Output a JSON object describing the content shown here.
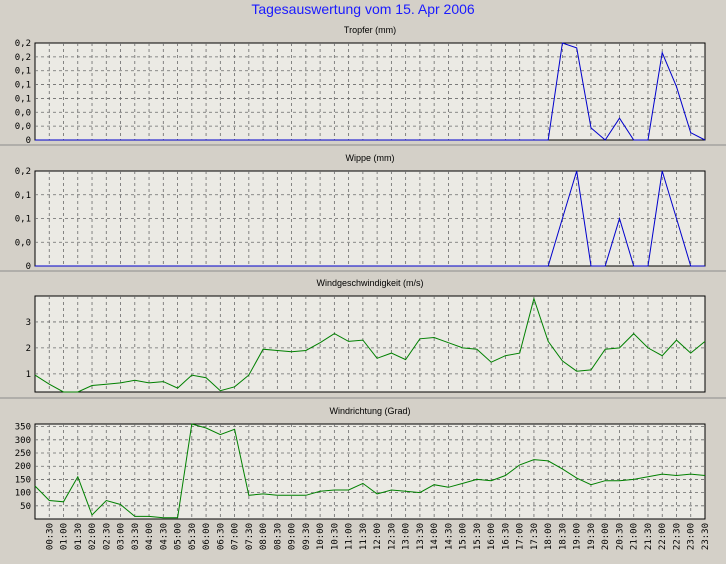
{
  "window": {
    "title": "Tagesauswertung vom 15. Apr 2006"
  },
  "chart_data": [
    {
      "type": "line",
      "title": "Tropfer (mm)",
      "color": "#0000cc",
      "x": [
        "00:00",
        "00:30",
        "01:00",
        "01:30",
        "02:00",
        "02:30",
        "03:00",
        "03:30",
        "04:00",
        "04:30",
        "05:00",
        "05:30",
        "06:00",
        "06:30",
        "07:00",
        "07:30",
        "08:00",
        "08:30",
        "09:00",
        "09:30",
        "10:00",
        "10:30",
        "11:00",
        "11:30",
        "12:00",
        "12:30",
        "13:00",
        "13:30",
        "14:00",
        "14:30",
        "15:00",
        "15:30",
        "16:00",
        "16:30",
        "17:00",
        "17:30",
        "18:00",
        "18:30",
        "19:00",
        "19:30",
        "20:00",
        "20:30",
        "21:00",
        "21:30",
        "22:00",
        "22:30",
        "23:00",
        "23:30"
      ],
      "values": [
        0,
        0,
        0,
        0,
        0,
        0,
        0,
        0,
        0,
        0,
        0,
        0,
        0,
        0,
        0,
        0,
        0,
        0,
        0,
        0,
        0,
        0,
        0,
        0,
        0,
        0,
        0,
        0,
        0,
        0,
        0,
        0,
        0,
        0,
        0,
        0,
        0,
        0.2,
        0.19,
        0.025,
        0,
        0.045,
        0,
        0,
        0.18,
        0.11,
        0.015,
        0
      ],
      "ylim": [
        0,
        0.2
      ],
      "yticks": [
        "0,2",
        "0,2",
        "0,1",
        "0,1",
        "0,1",
        "0,0",
        "0,0",
        "0"
      ]
    },
    {
      "type": "line",
      "title": "Wippe (mm)",
      "color": "#0000cc",
      "x": [
        "00:00",
        "00:30",
        "01:00",
        "01:30",
        "02:00",
        "02:30",
        "03:00",
        "03:30",
        "04:00",
        "04:30",
        "05:00",
        "05:30",
        "06:00",
        "06:30",
        "07:00",
        "07:30",
        "08:00",
        "08:30",
        "09:00",
        "09:30",
        "10:00",
        "10:30",
        "11:00",
        "11:30",
        "12:00",
        "12:30",
        "13:00",
        "13:30",
        "14:00",
        "14:30",
        "15:00",
        "15:30",
        "16:00",
        "16:30",
        "17:00",
        "17:30",
        "18:00",
        "18:30",
        "19:00",
        "19:30",
        "20:00",
        "20:30",
        "21:00",
        "21:30",
        "22:00",
        "22:30",
        "23:00",
        "23:30"
      ],
      "values": [
        0,
        0,
        0,
        0,
        0,
        0,
        0,
        0,
        0,
        0,
        0,
        0,
        0,
        0,
        0,
        0,
        0,
        0,
        0,
        0,
        0,
        0,
        0,
        0,
        0,
        0,
        0,
        0,
        0,
        0,
        0,
        0,
        0,
        0,
        0,
        0,
        0,
        0.14,
        0.28,
        0,
        0,
        0.14,
        0,
        0,
        0.28,
        0.14,
        0,
        0
      ],
      "ylim": [
        0,
        0.28
      ],
      "yticks": [
        "0,2",
        "0,1",
        "0,1",
        "0,0",
        "0"
      ]
    },
    {
      "type": "line",
      "title": "Windgeschwindigkeit (m/s)",
      "color": "#008000",
      "x": [
        "00:00",
        "00:30",
        "01:00",
        "01:30",
        "02:00",
        "02:30",
        "03:00",
        "03:30",
        "04:00",
        "04:30",
        "05:00",
        "05:30",
        "06:00",
        "06:30",
        "07:00",
        "07:30",
        "08:00",
        "08:30",
        "09:00",
        "09:30",
        "10:00",
        "10:30",
        "11:00",
        "11:30",
        "12:00",
        "12:30",
        "13:00",
        "13:30",
        "14:00",
        "14:30",
        "15:00",
        "15:30",
        "16:00",
        "16:30",
        "17:00",
        "17:30",
        "18:00",
        "18:30",
        "19:00",
        "19:30",
        "20:00",
        "20:30",
        "21:00",
        "21:30",
        "22:00",
        "22:30",
        "23:00",
        "23:30"
      ],
      "values": [
        0.95,
        0.6,
        0.3,
        0.3,
        0.55,
        0.6,
        0.65,
        0.75,
        0.65,
        0.7,
        0.45,
        0.95,
        0.85,
        0.35,
        0.5,
        0.95,
        1.95,
        1.9,
        1.85,
        1.9,
        2.2,
        2.55,
        2.25,
        2.3,
        1.6,
        1.8,
        1.55,
        2.35,
        2.4,
        2.2,
        2.0,
        1.95,
        1.45,
        1.7,
        1.8,
        3.9,
        2.25,
        1.5,
        1.1,
        1.15,
        1.95,
        2.0,
        2.55,
        2.0,
        1.7,
        2.3,
        1.8,
        2.25
      ],
      "ylim": [
        0.3,
        4.0
      ],
      "yticks": [
        "3",
        "2",
        "1"
      ]
    },
    {
      "type": "line",
      "title": "Windrichtung (Grad)",
      "color": "#008000",
      "x": [
        "00:00",
        "00:30",
        "01:00",
        "01:30",
        "02:00",
        "02:30",
        "03:00",
        "03:30",
        "04:00",
        "04:30",
        "05:00",
        "05:30",
        "06:00",
        "06:30",
        "07:00",
        "07:30",
        "08:00",
        "08:30",
        "09:00",
        "09:30",
        "10:00",
        "10:30",
        "11:00",
        "11:30",
        "12:00",
        "12:30",
        "13:00",
        "13:30",
        "14:00",
        "14:30",
        "15:00",
        "15:30",
        "16:00",
        "16:30",
        "17:00",
        "17:30",
        "18:00",
        "18:30",
        "19:00",
        "19:30",
        "20:00",
        "20:30",
        "21:00",
        "21:30",
        "22:00",
        "22:30",
        "23:00",
        "23:30"
      ],
      "values": [
        125,
        70,
        65,
        160,
        15,
        70,
        55,
        10,
        10,
        5,
        5,
        360,
        345,
        320,
        340,
        90,
        95,
        90,
        90,
        90,
        105,
        110,
        110,
        135,
        95,
        110,
        105,
        100,
        130,
        120,
        135,
        150,
        145,
        165,
        205,
        225,
        220,
        190,
        155,
        130,
        145,
        145,
        150,
        160,
        170,
        165,
        170,
        165
      ],
      "ylim": [
        0,
        360
      ],
      "yticks": [
        "350",
        "300",
        "250",
        "200",
        "150",
        "100",
        "50"
      ],
      "xticks": [
        "00:30",
        "01:00",
        "01:30",
        "02:00",
        "02:30",
        "03:00",
        "03:30",
        "04:00",
        "04:30",
        "05:00",
        "05:30",
        "06:00",
        "06:30",
        "07:00",
        "07:30",
        "08:00",
        "08:30",
        "09:00",
        "09:30",
        "10:00",
        "10:30",
        "11:00",
        "11:30",
        "12:00",
        "12:30",
        "13:00",
        "13:30",
        "14:00",
        "14:30",
        "15:00",
        "15:30",
        "16:00",
        "16:30",
        "17:00",
        "17:30",
        "18:00",
        "18:30",
        "19:00",
        "19:30",
        "20:00",
        "20:30",
        "21:00",
        "21:30",
        "22:00",
        "22:30",
        "23:00",
        "23:30"
      ]
    }
  ]
}
